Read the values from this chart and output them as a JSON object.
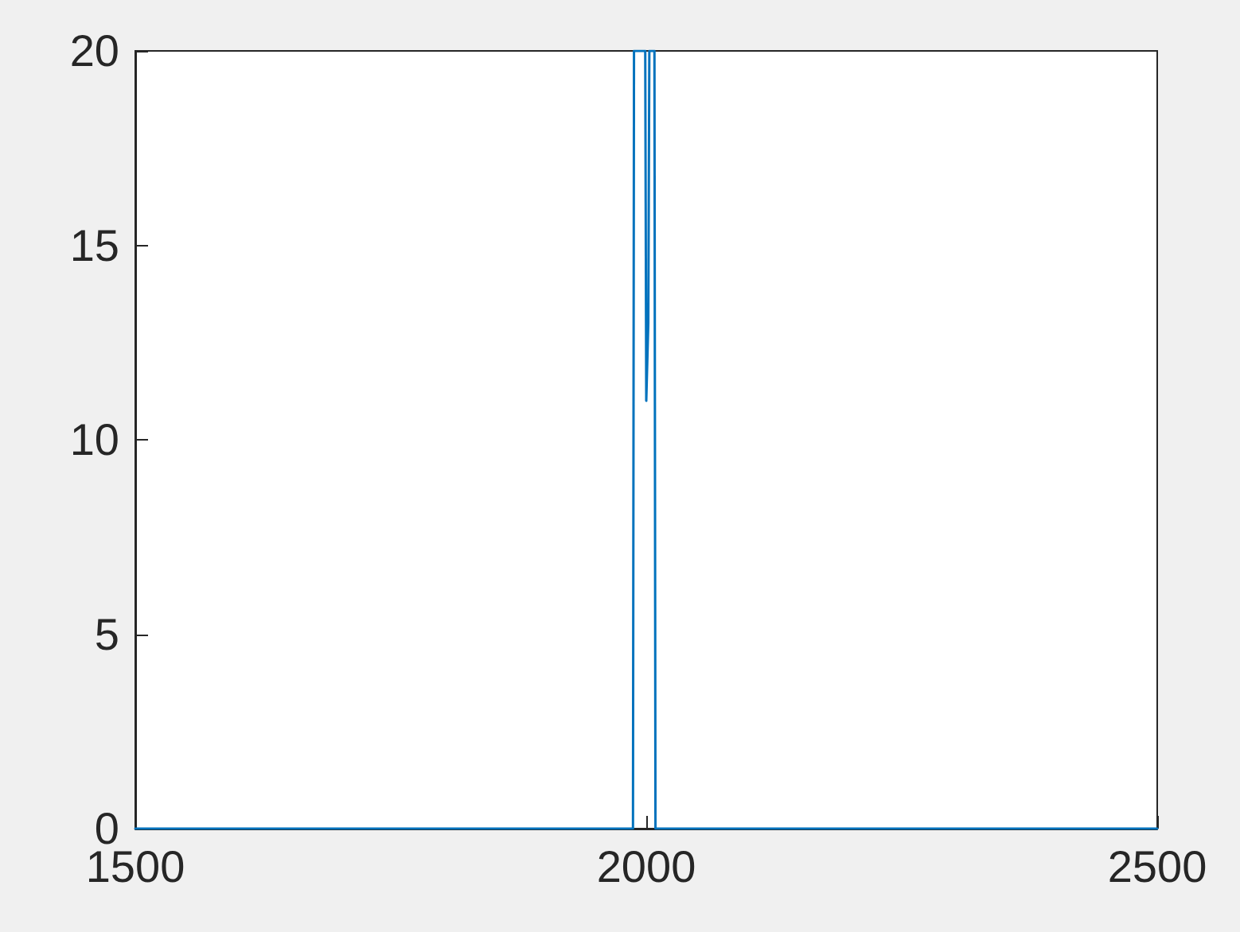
{
  "chart_data": {
    "type": "line",
    "series": [
      {
        "color": "#0072bd",
        "x": [
          1500,
          1987,
          1988,
          1999,
          2000,
          2002,
          2003,
          2008,
          2009,
          2500
        ],
        "values": [
          0,
          0,
          20,
          20,
          11,
          13,
          20,
          20,
          0,
          0
        ]
      }
    ],
    "xlim": [
      1500,
      2500
    ],
    "xticks": [
      1500,
      2000,
      2500
    ],
    "ylim": [
      0,
      20
    ],
    "yticks": [
      0,
      5,
      10,
      15,
      20
    ],
    "grid": false,
    "marker": "none",
    "line_style": "solid"
  }
}
